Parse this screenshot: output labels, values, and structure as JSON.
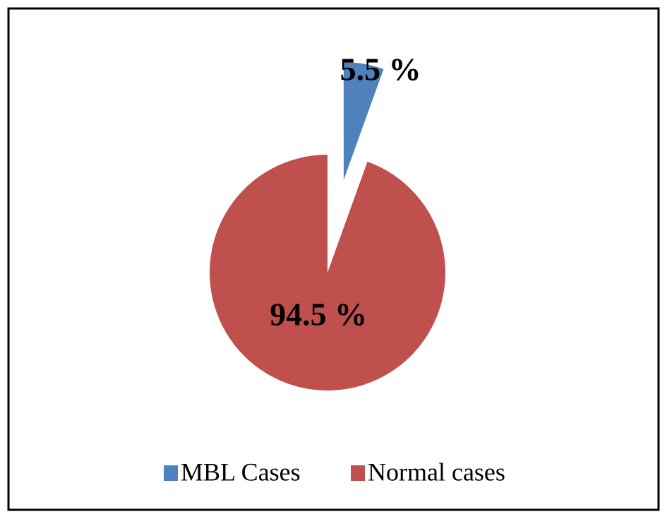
{
  "chart_data": {
    "type": "pie",
    "categories": [
      "MBL Cases",
      "Normal cases"
    ],
    "values": [
      5.5,
      94.5
    ],
    "value_labels": [
      "5.5 %",
      "94.5 %"
    ],
    "colors": [
      "#4f81bd",
      "#c0504d"
    ],
    "legend": "bottom"
  }
}
